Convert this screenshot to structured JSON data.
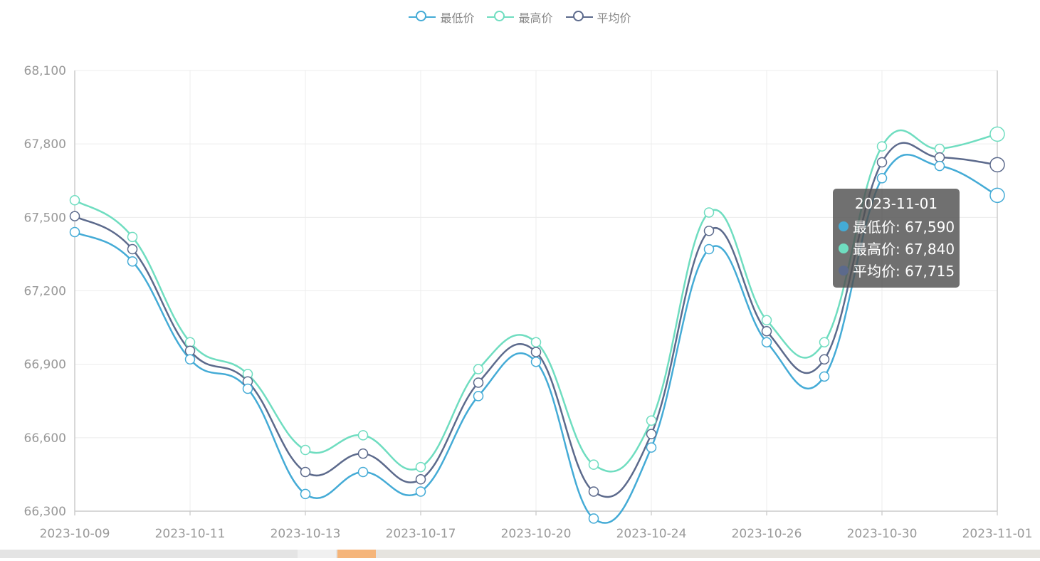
{
  "legend": {
    "items": [
      {
        "label": "最低价",
        "color": "#44abd6"
      },
      {
        "label": "最高价",
        "color": "#6fddc0"
      },
      {
        "label": "平均价",
        "color": "#5c6a8c"
      }
    ]
  },
  "tooltip": {
    "title": "2023-11-01",
    "rows": [
      {
        "text": "最低价: 67,590",
        "color": "#44abd6"
      },
      {
        "text": "最高价: 67,840",
        "color": "#6fddc0"
      },
      {
        "text": "平均价: 67,715",
        "color": "#5c6a8c"
      }
    ]
  },
  "chart_data": {
    "type": "line",
    "title": "",
    "xlabel": "",
    "ylabel": "",
    "ylim": [
      66300,
      68100
    ],
    "y_ticks": [
      "66,300",
      "66,600",
      "66,900",
      "67,200",
      "67,500",
      "67,800",
      "68,100"
    ],
    "y_tick_values": [
      66300,
      66600,
      66900,
      67200,
      67500,
      67800,
      68100
    ],
    "x_tick_labels": [
      "2023-10-09",
      "2023-10-11",
      "2023-10-13",
      "2023-10-17",
      "2023-10-20",
      "2023-10-24",
      "2023-10-26",
      "2023-10-30",
      "2023-11-01"
    ],
    "grid": true,
    "legend_position": "top-center",
    "series": [
      {
        "name": "最低价",
        "color": "#44abd6",
        "values": [
          67440,
          67320,
          66920,
          66800,
          66370,
          66460,
          66380,
          66770,
          66910,
          66270,
          66560,
          67370,
          66990,
          66850,
          67660,
          67710,
          67590
        ]
      },
      {
        "name": "最高价",
        "color": "#6fddc0",
        "values": [
          67570,
          67420,
          66990,
          66860,
          66550,
          66610,
          66480,
          66880,
          66990,
          66490,
          66670,
          67520,
          67080,
          66990,
          67790,
          67780,
          67840
        ]
      },
      {
        "name": "平均价",
        "color": "#5c6a8c",
        "values": [
          67505,
          67370,
          66955,
          66830,
          66460,
          66535,
          66430,
          66825,
          66950,
          66380,
          66615,
          67445,
          67035,
          66920,
          67725,
          67745,
          67715
        ]
      }
    ]
  }
}
